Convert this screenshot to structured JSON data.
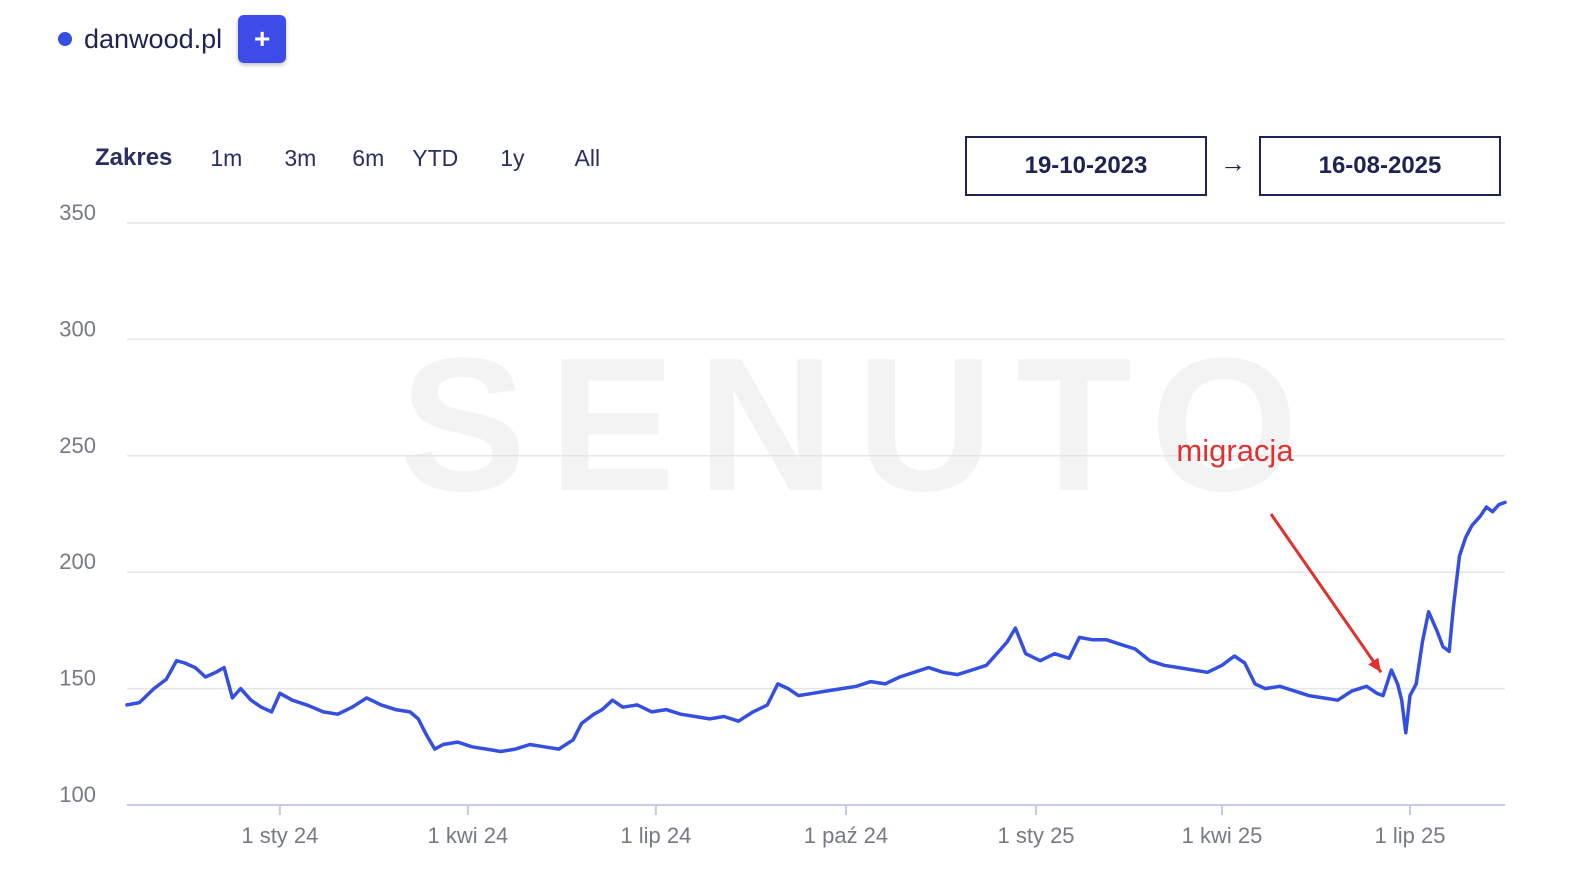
{
  "legend": {
    "label": "danwood.pl",
    "add_label": "+",
    "series_color": "#3550e0"
  },
  "range": {
    "label": "Zakres",
    "options": [
      "1m",
      "3m",
      "6m",
      "YTD",
      "1y",
      "All"
    ],
    "start_date": "19-10-2023",
    "arrow": "→",
    "end_date": "16-08-2025"
  },
  "watermark": "SENUTO",
  "chart_data": {
    "type": "line",
    "title": "",
    "xlabel": "",
    "ylabel": "",
    "ylim": [
      100,
      350
    ],
    "yticks": [
      100,
      150,
      200,
      250,
      300,
      350
    ],
    "xlim": [
      "2023-10-19",
      "2025-08-16"
    ],
    "xticks": [
      {
        "date": "2024-01-01",
        "label": "1 sty 24"
      },
      {
        "date": "2024-04-01",
        "label": "1 kwi 24"
      },
      {
        "date": "2024-07-01",
        "label": "1 lip 24"
      },
      {
        "date": "2024-10-01",
        "label": "1 paź 24"
      },
      {
        "date": "2025-01-01",
        "label": "1 sty 25"
      },
      {
        "date": "2025-04-01",
        "label": "1 kwi 25"
      },
      {
        "date": "2025-07-01",
        "label": "1 lip 25"
      }
    ],
    "grid": true,
    "legend_position": "top-left",
    "series": [
      {
        "name": "danwood.pl",
        "color": "#3550e0",
        "points": [
          [
            "2023-10-19",
            143
          ],
          [
            "2023-10-25",
            144
          ],
          [
            "2023-11-01",
            150
          ],
          [
            "2023-11-07",
            154
          ],
          [
            "2023-11-12",
            162
          ],
          [
            "2023-11-16",
            161
          ],
          [
            "2023-11-21",
            159
          ],
          [
            "2023-11-26",
            155
          ],
          [
            "2023-12-01",
            157
          ],
          [
            "2023-12-05",
            159
          ],
          [
            "2023-12-09",
            146
          ],
          [
            "2023-12-13",
            150
          ],
          [
            "2023-12-18",
            145
          ],
          [
            "2023-12-23",
            142
          ],
          [
            "2023-12-28",
            140
          ],
          [
            "2024-01-01",
            148
          ],
          [
            "2024-01-07",
            145
          ],
          [
            "2024-01-14",
            143
          ],
          [
            "2024-01-22",
            140
          ],
          [
            "2024-01-29",
            139
          ],
          [
            "2024-02-05",
            142
          ],
          [
            "2024-02-12",
            146
          ],
          [
            "2024-02-19",
            143
          ],
          [
            "2024-02-26",
            141
          ],
          [
            "2024-03-04",
            140
          ],
          [
            "2024-03-08",
            137
          ],
          [
            "2024-03-12",
            130
          ],
          [
            "2024-03-16",
            124
          ],
          [
            "2024-03-20",
            126
          ],
          [
            "2024-03-27",
            127
          ],
          [
            "2024-04-03",
            125
          ],
          [
            "2024-04-10",
            124
          ],
          [
            "2024-04-17",
            123
          ],
          [
            "2024-04-24",
            124
          ],
          [
            "2024-05-01",
            126
          ],
          [
            "2024-05-08",
            125
          ],
          [
            "2024-05-15",
            124
          ],
          [
            "2024-05-22",
            128
          ],
          [
            "2024-05-26",
            135
          ],
          [
            "2024-06-01",
            139
          ],
          [
            "2024-06-05",
            141
          ],
          [
            "2024-06-10",
            145
          ],
          [
            "2024-06-15",
            142
          ],
          [
            "2024-06-22",
            143
          ],
          [
            "2024-06-29",
            140
          ],
          [
            "2024-07-06",
            141
          ],
          [
            "2024-07-13",
            139
          ],
          [
            "2024-07-20",
            138
          ],
          [
            "2024-07-27",
            137
          ],
          [
            "2024-08-03",
            138
          ],
          [
            "2024-08-10",
            136
          ],
          [
            "2024-08-17",
            140
          ],
          [
            "2024-08-24",
            143
          ],
          [
            "2024-08-29",
            152
          ],
          [
            "2024-09-03",
            150
          ],
          [
            "2024-09-08",
            147
          ],
          [
            "2024-09-15",
            148
          ],
          [
            "2024-09-22",
            149
          ],
          [
            "2024-09-29",
            150
          ],
          [
            "2024-10-06",
            151
          ],
          [
            "2024-10-13",
            153
          ],
          [
            "2024-10-20",
            152
          ],
          [
            "2024-10-27",
            155
          ],
          [
            "2024-11-03",
            157
          ],
          [
            "2024-11-10",
            159
          ],
          [
            "2024-11-17",
            157
          ],
          [
            "2024-11-24",
            156
          ],
          [
            "2024-12-01",
            158
          ],
          [
            "2024-12-08",
            160
          ],
          [
            "2024-12-13",
            165
          ],
          [
            "2024-12-18",
            170
          ],
          [
            "2024-12-22",
            176
          ],
          [
            "2024-12-27",
            165
          ],
          [
            "2025-01-03",
            162
          ],
          [
            "2025-01-10",
            165
          ],
          [
            "2025-01-17",
            163
          ],
          [
            "2025-01-22",
            172
          ],
          [
            "2025-01-28",
            171
          ],
          [
            "2025-02-04",
            171
          ],
          [
            "2025-02-11",
            169
          ],
          [
            "2025-02-18",
            167
          ],
          [
            "2025-02-25",
            162
          ],
          [
            "2025-03-04",
            160
          ],
          [
            "2025-03-11",
            159
          ],
          [
            "2025-03-18",
            158
          ],
          [
            "2025-03-25",
            157
          ],
          [
            "2025-04-01",
            160
          ],
          [
            "2025-04-07",
            164
          ],
          [
            "2025-04-12",
            161
          ],
          [
            "2025-04-17",
            152
          ],
          [
            "2025-04-22",
            150
          ],
          [
            "2025-04-29",
            151
          ],
          [
            "2025-05-06",
            149
          ],
          [
            "2025-05-13",
            147
          ],
          [
            "2025-05-20",
            146
          ],
          [
            "2025-05-27",
            145
          ],
          [
            "2025-06-03",
            149
          ],
          [
            "2025-06-10",
            151
          ],
          [
            "2025-06-15",
            148
          ],
          [
            "2025-06-18",
            147
          ],
          [
            "2025-06-22",
            158
          ],
          [
            "2025-06-25",
            152
          ],
          [
            "2025-06-27",
            145
          ],
          [
            "2025-06-29",
            131
          ],
          [
            "2025-07-01",
            147
          ],
          [
            "2025-07-04",
            152
          ],
          [
            "2025-07-07",
            170
          ],
          [
            "2025-07-10",
            183
          ],
          [
            "2025-07-14",
            175
          ],
          [
            "2025-07-17",
            168
          ],
          [
            "2025-07-20",
            166
          ],
          [
            "2025-07-22",
            185
          ],
          [
            "2025-07-25",
            207
          ],
          [
            "2025-07-28",
            215
          ],
          [
            "2025-07-31",
            220
          ],
          [
            "2025-08-04",
            224
          ],
          [
            "2025-08-07",
            228
          ],
          [
            "2025-08-10",
            226
          ],
          [
            "2025-08-13",
            229
          ],
          [
            "2025-08-16",
            230
          ]
        ]
      }
    ],
    "annotations": [
      {
        "text": "migracja",
        "color": "#e03030",
        "arrow_to": {
          "date": "2025-06-17",
          "value": 157
        }
      }
    ]
  }
}
